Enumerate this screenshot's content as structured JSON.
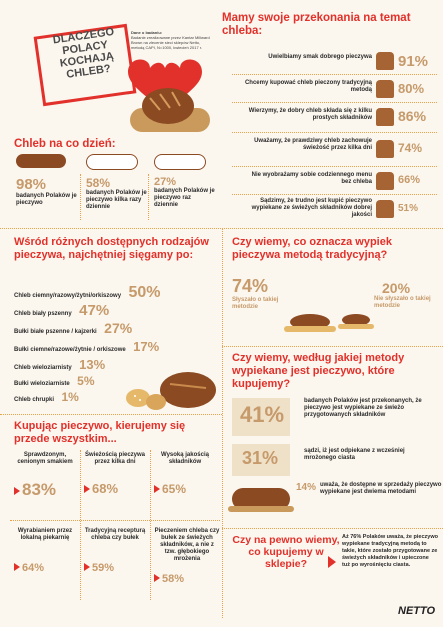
{
  "colors": {
    "accent": "#e2312b",
    "bread_dark": "#8b4a22",
    "bread_light": "#e6b86a",
    "bg": "#fbf6ee"
  },
  "hero": {
    "title_lines": [
      "DLACZEGO",
      "POLACY",
      "KOCHAJĄ",
      "CHLEB?"
    ],
    "source_label": "Dane o badaniu:",
    "source_text": "Badanie zrealizowane przez Kantar Millward Brown na zlecenie sieci sklepów Netto, metodą CAPI, N=1000, kwiecień 2017 r."
  },
  "convictions": {
    "title": "Mamy swoje przekonania na temat chleba:",
    "items": [
      {
        "text": "Uwielbiamy smak dobrego pieczywa",
        "pct": "91%",
        "value": 91
      },
      {
        "text": "Chcemy kupować chleb pieczony tradycyjną metodą",
        "pct": "80%",
        "value": 80
      },
      {
        "text": "Wierzymy, że dobry chleb składa się z kilku prostych składników",
        "pct": "86%",
        "value": 86
      },
      {
        "text": "Uważamy, że prawdziwy chleb zachowuje świeżość przez kilka dni",
        "pct": "74%",
        "value": 74
      },
      {
        "text": "Nie wyobrażamy sobie codziennego menu bez chleba",
        "pct": "66%",
        "value": 66
      },
      {
        "text": "Sądzimy, że trudno jest kupić pieczywo wypiekane ze świeżych składników dobrej jakości",
        "pct": "51%",
        "value": 51
      }
    ]
  },
  "daily": {
    "title": "Chleb na co dzień:",
    "items": [
      {
        "pct": "98%",
        "text": "badanych Polaków je pieczywo"
      },
      {
        "pct": "58%",
        "text": "badanych Polaków je pieczywo kilka razy dziennie"
      },
      {
        "pct": "27%",
        "text": "badanych Polaków je pieczywo raz dziennie"
      }
    ]
  },
  "types": {
    "title": "Wśród różnych dostępnych rodzajów pieczywa, najchętniej sięgamy po:",
    "items": [
      {
        "label": "Chleb ciemny/razowy/żytni/orkiszowy",
        "pct": "50%"
      },
      {
        "label": "Chleb biały pszenny",
        "pct": "47%"
      },
      {
        "label": "Bułki białe pszenne / kajzerki",
        "pct": "27%"
      },
      {
        "label": "Bułki ciemne/razowe/żytnie / orkiszowe",
        "pct": "17%"
      },
      {
        "label": "Chleb wieloziarnisty",
        "pct": "13%"
      },
      {
        "label": "Bułki wieloziarniste",
        "pct": "5%"
      },
      {
        "label": "Chleb chrupki",
        "pct": "1%"
      }
    ]
  },
  "traditional": {
    "title": "Czy wiemy, co oznacza wypiek pieczywa metodą tradycyjną?",
    "items": [
      {
        "pct": "74%",
        "text": "Słyszało o takiej metodzie"
      },
      {
        "pct": "20%",
        "text": "Nie słyszało o takiej metodzie"
      }
    ]
  },
  "method": {
    "title": "Czy wiemy, według jakiej metody wypiekane jest pieczywo, które kupujemy?",
    "items": [
      {
        "pct": "41%",
        "text": "badanych Polaków jest przekonanych, że pieczywo jest wypiekane ze świeżo przygotowanych składników"
      },
      {
        "pct": "31%",
        "text": "sądzi, iż jest odpiekane z wcześniej mrożonego ciasta"
      },
      {
        "pct": "14%",
        "text": "uważa, że dostępne w sprzedaży pieczywo wypiekane jest dwiema metodami"
      }
    ]
  },
  "buying": {
    "title": "Kupując pieczywo, kierujemy się przede wszystkim...",
    "items": [
      {
        "text": "Sprawdzonym, cenionym smakiem",
        "pct": "83%"
      },
      {
        "text": "Świeżością pieczywa przez kilka dni",
        "pct": "68%"
      },
      {
        "text": "Wysoką jakością składników",
        "pct": "65%"
      },
      {
        "text": "Wyrabianiem przez lokalną piekarnię",
        "pct": "64%"
      },
      {
        "text": "Tradycyjną recepturą chleba czy bułek",
        "pct": "59%"
      },
      {
        "text": "Pieczeniem chleba czy bułek ze świeżych składników, a nie z tzw. głębokiego mrożenia",
        "pct": "58%"
      }
    ]
  },
  "sure": {
    "title": "Czy na pewno wiemy, co kupujemy w sklepie?",
    "text": "Aż 76% Polaków uważa, że pieczywo wypiekane tradycyjną metodą to takie, które zostało przygotowane ze świeżych składników i upieczone tuż po wyrośnięciu ciasta."
  },
  "brand": {
    "logo": "NETTO"
  }
}
